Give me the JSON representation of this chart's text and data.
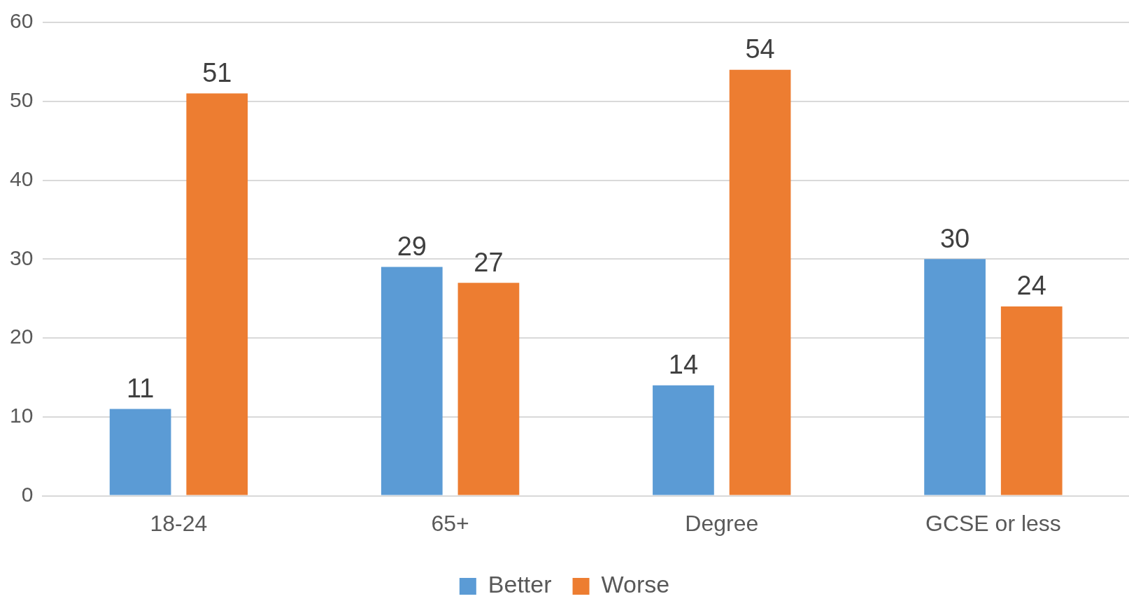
{
  "chart_data": {
    "type": "bar",
    "categories": [
      "18-24",
      "65+",
      "Degree",
      "GCSE or less"
    ],
    "series": [
      {
        "name": "Better",
        "color": "#5b9bd5",
        "values": [
          11,
          29,
          14,
          30
        ]
      },
      {
        "name": "Worse",
        "color": "#ed7d31",
        "values": [
          51,
          27,
          54,
          24
        ]
      }
    ],
    "ylim": [
      0,
      60
    ],
    "yticks": [
      0,
      10,
      20,
      30,
      40,
      50,
      60
    ],
    "grid": "y",
    "legend": "bottom",
    "data_labels": true
  }
}
